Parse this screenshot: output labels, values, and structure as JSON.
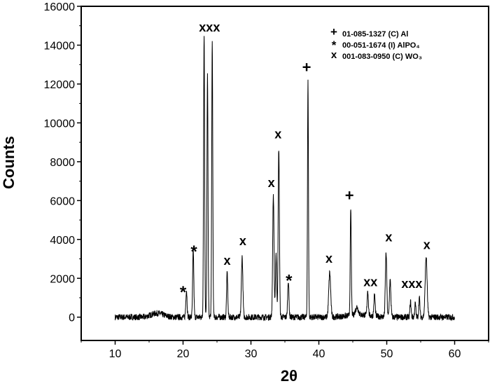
{
  "chart_data": {
    "type": "line",
    "xlabel": "2θ",
    "ylabel": "Counts",
    "xlim": [
      5,
      65
    ],
    "ylim": [
      -1200,
      16000
    ],
    "xticks": [
      10,
      20,
      30,
      40,
      50,
      60
    ],
    "yticks": [
      0,
      2000,
      4000,
      6000,
      8000,
      10000,
      12000,
      14000,
      16000
    ],
    "xtick_labels": [
      "10",
      "20",
      "30",
      "40",
      "50",
      "60"
    ],
    "ytick_labels": [
      "0",
      "2000",
      "4000",
      "6000",
      "8000",
      "10000",
      "12000",
      "14000",
      "16000"
    ],
    "grid": false,
    "legend_position": "top-right",
    "legend": [
      {
        "symbol": "+",
        "label": "01-085-1327 (C) Al"
      },
      {
        "symbol": "*",
        "label": "00-051-1674 (I) AlPO₄"
      },
      {
        "symbol": "x",
        "label": "001-083-0950 (C) WO₃"
      }
    ],
    "peaks": [
      {
        "x": 20.5,
        "y": 1400,
        "width": 0.13
      },
      {
        "x": 21.5,
        "y": 3500,
        "width": 0.12
      },
      {
        "x": 23.1,
        "y": 14600,
        "width": 0.11
      },
      {
        "x": 23.6,
        "y": 12400,
        "width": 0.11
      },
      {
        "x": 24.3,
        "y": 14100,
        "width": 0.11
      },
      {
        "x": 26.5,
        "y": 2300,
        "width": 0.12
      },
      {
        "x": 28.7,
        "y": 3100,
        "width": 0.15
      },
      {
        "x": 33.3,
        "y": 6300,
        "width": 0.14
      },
      {
        "x": 33.7,
        "y": 3300,
        "width": 0.12
      },
      {
        "x": 34.1,
        "y": 8700,
        "width": 0.13
      },
      {
        "x": 35.5,
        "y": 1900,
        "width": 0.13
      },
      {
        "x": 38.4,
        "y": 12100,
        "width": 0.1
      },
      {
        "x": 41.6,
        "y": 2300,
        "width": 0.2
      },
      {
        "x": 44.7,
        "y": 5500,
        "width": 0.11
      },
      {
        "x": 45.6,
        "y": 400,
        "width": 0.3
      },
      {
        "x": 47.2,
        "y": 1300,
        "width": 0.13
      },
      {
        "x": 48.2,
        "y": 1100,
        "width": 0.13
      },
      {
        "x": 49.9,
        "y": 3300,
        "width": 0.15
      },
      {
        "x": 50.5,
        "y": 1900,
        "width": 0.15
      },
      {
        "x": 53.5,
        "y": 800,
        "width": 0.12
      },
      {
        "x": 54.2,
        "y": 700,
        "width": 0.12
      },
      {
        "x": 54.8,
        "y": 1000,
        "width": 0.12
      },
      {
        "x": 55.8,
        "y": 3100,
        "width": 0.2
      }
    ],
    "annotations": [
      {
        "text": "*",
        "x": 20.0,
        "y": 1500
      },
      {
        "text": "*",
        "x": 21.6,
        "y": 3600
      },
      {
        "text": "xxx",
        "x": 23.9,
        "y": 14700
      },
      {
        "text": "x",
        "x": 26.5,
        "y": 2700
      },
      {
        "text": "x",
        "x": 28.8,
        "y": 3700
      },
      {
        "text": "x",
        "x": 33.0,
        "y": 6700
      },
      {
        "text": "x",
        "x": 34.0,
        "y": 9200
      },
      {
        "text": "*",
        "x": 35.6,
        "y": 2100
      },
      {
        "text": "+",
        "x": 38.2,
        "y": 12600
      },
      {
        "text": "x",
        "x": 41.5,
        "y": 2800
      },
      {
        "text": "+",
        "x": 44.5,
        "y": 6000
      },
      {
        "text": "xx",
        "x": 47.6,
        "y": 1600
      },
      {
        "text": "x",
        "x": 50.3,
        "y": 3900
      },
      {
        "text": "xxx",
        "x": 53.7,
        "y": 1500
      },
      {
        "text": "x",
        "x": 55.9,
        "y": 3500
      }
    ]
  }
}
